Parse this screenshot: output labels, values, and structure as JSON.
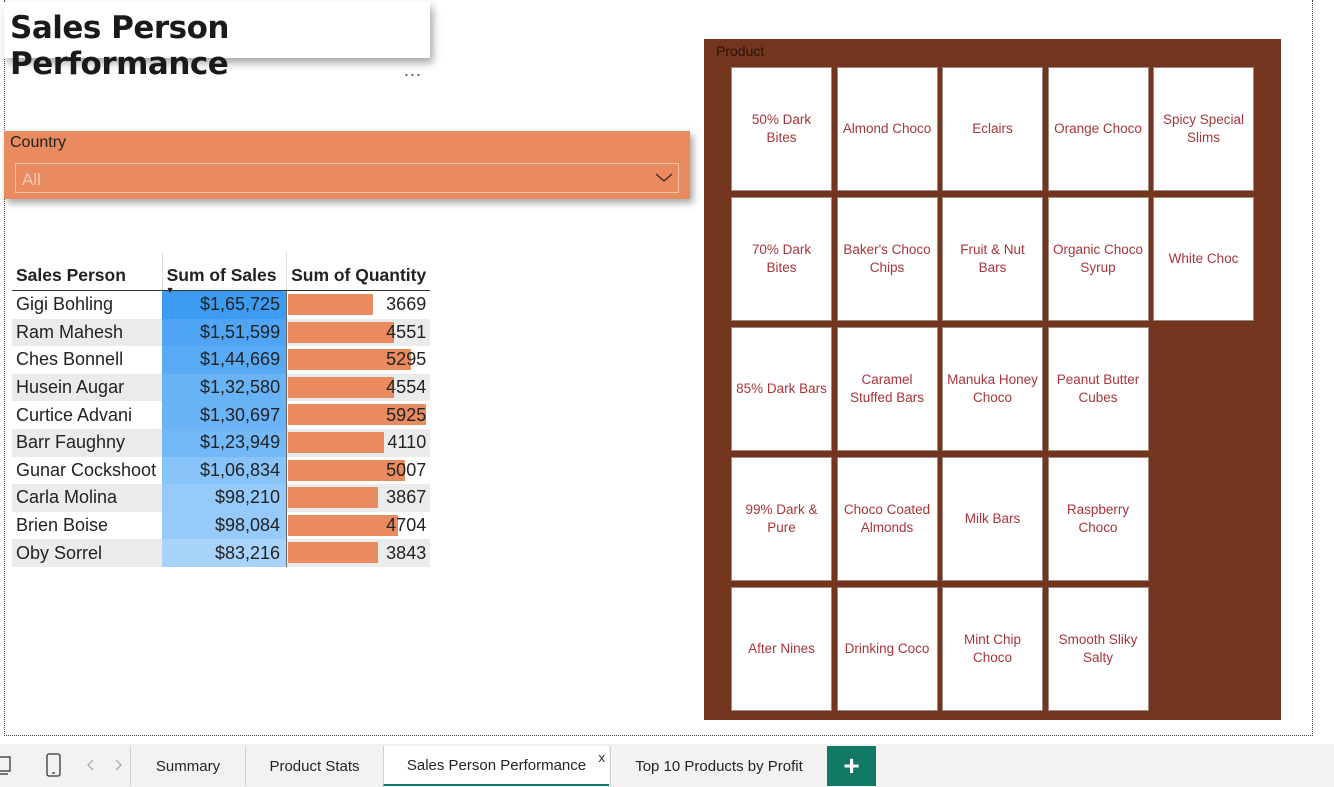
{
  "title": "Sales Person Performance",
  "more_options": "...",
  "slicer": {
    "label": "Country",
    "value": "All"
  },
  "table": {
    "headers": [
      "Sales Person",
      "Sum of Sales",
      "Sum of Quantity"
    ],
    "rows": [
      {
        "name": "Gigi Bohling",
        "sales": "$1,65,725",
        "qty": "3669"
      },
      {
        "name": "Ram Mahesh",
        "sales": "$1,51,599",
        "qty": "4551"
      },
      {
        "name": "Ches Bonnell",
        "sales": "$1,44,669",
        "qty": "5295"
      },
      {
        "name": "Husein Augar",
        "sales": "$1,32,580",
        "qty": "4554"
      },
      {
        "name": "Curtice Advani",
        "sales": "$1,30,697",
        "qty": "5925"
      },
      {
        "name": "Barr Faughny",
        "sales": "$1,23,949",
        "qty": "4110"
      },
      {
        "name": "Gunar Cockshoot",
        "sales": "$1,06,834",
        "qty": "5007"
      },
      {
        "name": "Carla Molina",
        "sales": "$98,210",
        "qty": "3867"
      },
      {
        "name": "Brien Boise",
        "sales": "$98,084",
        "qty": "4704"
      },
      {
        "name": "Oby Sorrel",
        "sales": "$83,216",
        "qty": "3843"
      }
    ],
    "colors": {
      "sales_dark": "#3d9bf2",
      "sales_light": "#a8d4fc",
      "qty_bar": "#e98a5f"
    }
  },
  "product_panel": {
    "title": "Product",
    "background": "#74351f",
    "items": [
      "50% Dark Bites",
      "Almond Choco",
      "Eclairs",
      "Orange Choco",
      "Spicy Special Slims",
      "70% Dark Bites",
      "Baker's Choco Chips",
      "Fruit & Nut Bars",
      "Organic Choco Syrup",
      "White Choc",
      "85% Dark Bars",
      "Caramel Stuffed Bars",
      "Manuka Honey Choco",
      "Peanut Butter Cubes",
      "99% Dark & Pure",
      "Choco Coated Almonds",
      "Milk Bars",
      "Raspberry Choco",
      "After Nines",
      "Drinking Coco",
      "Mint Chip Choco",
      "Smooth Sliky Salty"
    ]
  },
  "tabs": {
    "items": [
      "Summary",
      "Product Stats",
      "Sales Person Performance",
      "Top 10 Products by Profit"
    ],
    "active": "Sales Person Performance",
    "close_label": "x",
    "add_label": "+",
    "accent": "#117865"
  }
}
